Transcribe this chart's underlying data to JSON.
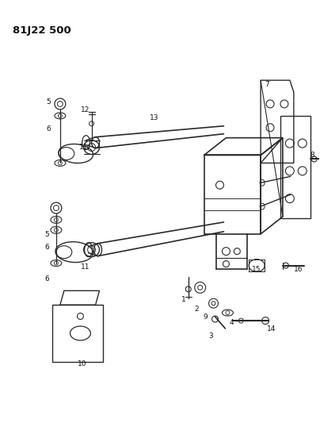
{
  "title": "81J22 500",
  "background_color": "#ffffff",
  "line_color": "#2a2a2a",
  "figsize": [
    4.04,
    5.33
  ],
  "dpi": 100
}
